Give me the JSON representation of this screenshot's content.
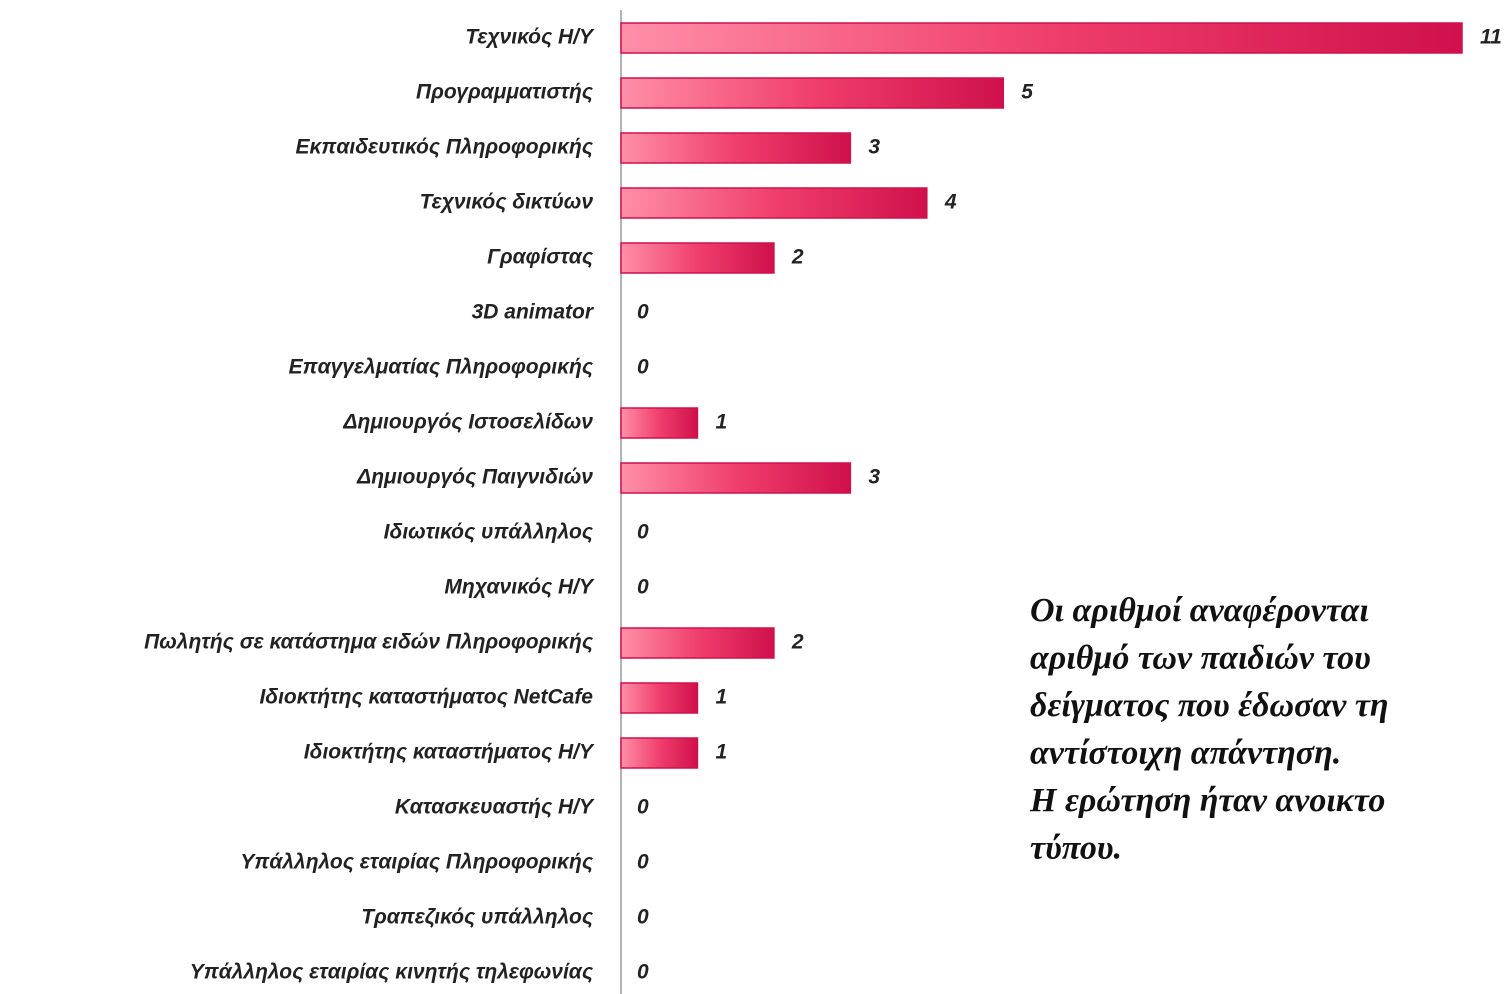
{
  "chart_data": {
    "type": "bar",
    "orientation": "horizontal",
    "categories": [
      "Τεχνικός Η/Υ",
      "Προγραμματιστής",
      "Εκπαιδευτικός Πληροφορικής",
      "Τεχνικός δικτύων",
      "Γραφίστας",
      "3D animator",
      "Επαγγελματίας Πληροφορικής",
      "Δημιουργός Ιστοσελίδων",
      "Δημιουργός Παιγνιδιών",
      "Ιδιωτικός υπάλληλος",
      "Μηχανικός Η/Υ",
      "Πωλητής σε κατάστημα ειδών Πληροφορικής",
      "Ιδιοκτήτης καταστήματος NetCafe",
      "Ιδιοκτήτης καταστήματος Η/Υ",
      "Κατασκευαστής Η/Υ",
      "Υπάλληλος εταιρίας Πληροφορικής",
      "Τραπεζικός υπάλληλος",
      "Υπάλληλος εταιρίας κινητής τηλεφωνίας"
    ],
    "values": [
      11,
      5,
      3,
      4,
      2,
      0,
      0,
      1,
      3,
      0,
      0,
      2,
      1,
      1,
      0,
      0,
      0,
      0
    ],
    "color": "#d0104c",
    "xlim": [
      0,
      11
    ],
    "annotation": [
      "Οι αριθμοί αναφέρονται",
      "αριθμό των παιδιών του",
      "δείγματος που έδωσαν τη",
      "αντίστοιχη απάντηση.",
      "Η ερώτηση ήταν ανοικτο",
      "τύπου."
    ]
  }
}
